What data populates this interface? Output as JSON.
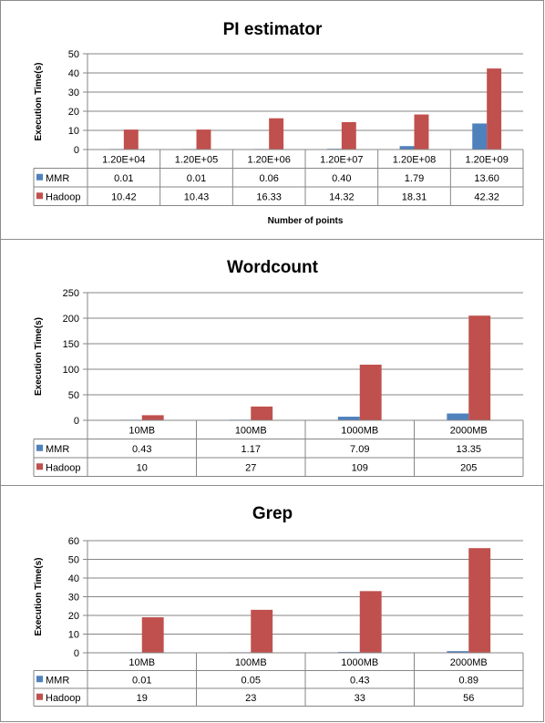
{
  "colors": {
    "mmr": "#4f81bd",
    "hadoop": "#c0504d",
    "grid": "#868686",
    "border": "#8c8c8c"
  },
  "chart_data": [
    {
      "type": "bar",
      "title": "PI estimator",
      "ylabel": "Execution Time(s)",
      "xlabel": "Number of  points",
      "ylim": [
        0,
        50
      ],
      "yticks": [
        0,
        10,
        20,
        30,
        40,
        50
      ],
      "grid": true,
      "legend": "data-table",
      "categories": [
        "1.20E+04",
        "1.20E+05",
        "1.20E+06",
        "1.20E+07",
        "1.20E+08",
        "1.20E+09"
      ],
      "series": [
        {
          "name": "MMR",
          "values": [
            0.01,
            0.01,
            0.06,
            0.4,
            1.79,
            13.6
          ],
          "labels": [
            "0.01",
            "0.01",
            "0.06",
            "0.40",
            "1.79",
            "13.60"
          ]
        },
        {
          "name": "Hadoop",
          "values": [
            10.42,
            10.43,
            16.33,
            14.32,
            18.31,
            42.32
          ],
          "labels": [
            "10.42",
            "10.43",
            "16.33",
            "14.32",
            "18.31",
            "42.32"
          ]
        }
      ]
    },
    {
      "type": "bar",
      "title": "Wordcount",
      "ylabel": "Execution Time(s)",
      "xlabel": "",
      "ylim": [
        0,
        250
      ],
      "yticks": [
        0,
        50,
        100,
        150,
        200,
        250
      ],
      "grid": true,
      "legend": "data-table",
      "categories": [
        "10MB",
        "100MB",
        "1000MB",
        "2000MB"
      ],
      "series": [
        {
          "name": "MMR",
          "values": [
            0.43,
            1.17,
            7.09,
            13.35
          ],
          "labels": [
            "0.43",
            "1.17",
            "7.09",
            "13.35"
          ]
        },
        {
          "name": "Hadoop",
          "values": [
            10,
            27,
            109,
            205
          ],
          "labels": [
            "10",
            "27",
            "109",
            "205"
          ]
        }
      ]
    },
    {
      "type": "bar",
      "title": "Grep",
      "ylabel": "Execution Time(s)",
      "xlabel": "",
      "ylim": [
        0,
        60
      ],
      "yticks": [
        0,
        10,
        20,
        30,
        40,
        50,
        60
      ],
      "grid": true,
      "legend": "data-table",
      "categories": [
        "10MB",
        "100MB",
        "1000MB",
        "2000MB"
      ],
      "series": [
        {
          "name": "MMR",
          "values": [
            0.01,
            0.05,
            0.43,
            0.89
          ],
          "labels": [
            "0.01",
            "0.05",
            "0.43",
            "0.89"
          ]
        },
        {
          "name": "Hadoop",
          "values": [
            19,
            23,
            33,
            56
          ],
          "labels": [
            "19",
            "23",
            "33",
            "56"
          ]
        }
      ]
    }
  ]
}
